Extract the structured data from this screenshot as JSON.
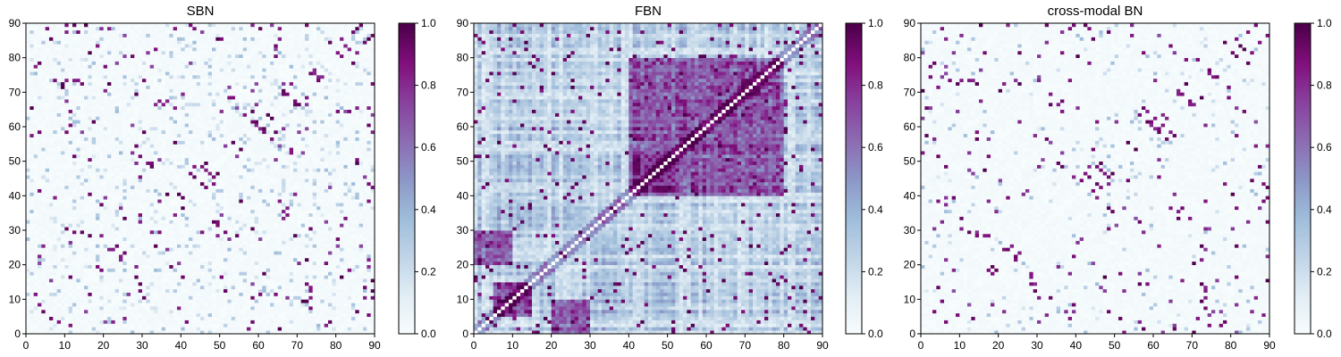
{
  "chart_data": [
    {
      "type": "heatmap",
      "title": "SBN",
      "xlim": [
        0,
        90
      ],
      "ylim": [
        0,
        90
      ],
      "xticks": [
        "0",
        "10",
        "20",
        "30",
        "40",
        "50",
        "60",
        "70",
        "80",
        "90"
      ],
      "yticks": [
        "0",
        "10",
        "20",
        "30",
        "40",
        "50",
        "60",
        "70",
        "80",
        "90"
      ],
      "colorbar": {
        "ticks": [
          "0.0",
          "0.2",
          "0.4",
          "0.6",
          "0.8",
          "1.0"
        ],
        "range": [
          0,
          1
        ]
      },
      "matrix_size": 90,
      "baseline": 0.03,
      "sparse_strong_links": 0.025,
      "sparse_weak_links": 0.08,
      "strong_pairs": [
        [
          1,
          57
        ],
        [
          1,
          65
        ],
        [
          2,
          77
        ],
        [
          3,
          78
        ],
        [
          5,
          88
        ],
        [
          6,
          85
        ],
        [
          7,
          73
        ],
        [
          9,
          72
        ],
        [
          10,
          73
        ],
        [
          12,
          73
        ],
        [
          13,
          73
        ],
        [
          14,
          72
        ],
        [
          15,
          90
        ],
        [
          16,
          81
        ],
        [
          18,
          19
        ],
        [
          20,
          70
        ],
        [
          21,
          88
        ],
        [
          22,
          24
        ],
        [
          23,
          25
        ],
        [
          24,
          21
        ],
        [
          25,
          23
        ],
        [
          28,
          16
        ],
        [
          29,
          12
        ],
        [
          30,
          10
        ],
        [
          33,
          66
        ],
        [
          34,
          67
        ],
        [
          35,
          66
        ],
        [
          36,
          67
        ],
        [
          38,
          88
        ],
        [
          42,
          46
        ],
        [
          43,
          48
        ],
        [
          44,
          44
        ],
        [
          45,
          43
        ],
        [
          46,
          49
        ],
        [
          47,
          46
        ],
        [
          48,
          45
        ],
        [
          50,
          50
        ],
        [
          52,
          52
        ],
        [
          53,
          55
        ],
        [
          55,
          55
        ],
        [
          58,
          64
        ],
        [
          59,
          61
        ],
        [
          60,
          59
        ],
        [
          61,
          58
        ],
        [
          62,
          63
        ],
        [
          63,
          56
        ],
        [
          64,
          83
        ],
        [
          65,
          85
        ],
        [
          66,
          70
        ],
        [
          67,
          69
        ],
        [
          68,
          72
        ],
        [
          69,
          66
        ],
        [
          70,
          66
        ],
        [
          72,
          21
        ],
        [
          73,
          30
        ],
        [
          74,
          76
        ],
        [
          75,
          74
        ],
        [
          76,
          74
        ],
        [
          78,
          84
        ],
        [
          80,
          81
        ],
        [
          81,
          85
        ],
        [
          82,
          83
        ],
        [
          84,
          87
        ],
        [
          85,
          88
        ],
        [
          86,
          90
        ],
        [
          88,
          43
        ],
        [
          89,
          42
        ],
        [
          87,
          13
        ],
        [
          60,
          11
        ],
        [
          39,
          7
        ],
        [
          4,
          6
        ],
        [
          8,
          3
        ],
        [
          11,
          2
        ]
      ],
      "cmap": [
        "#f7fcfd",
        "#e0ecf4",
        "#bfd3e6",
        "#9ebcda",
        "#8c96c6",
        "#8c6bb1",
        "#88419d",
        "#810f7c",
        "#4d004b"
      ]
    },
    {
      "type": "heatmap",
      "title": "FBN",
      "xlim": [
        0,
        90
      ],
      "ylim": [
        0,
        90
      ],
      "xticks": [
        "0",
        "10",
        "20",
        "30",
        "40",
        "50",
        "60",
        "70",
        "80",
        "90"
      ],
      "yticks": [
        "0",
        "10",
        "20",
        "30",
        "40",
        "50",
        "60",
        "70",
        "80",
        "90"
      ],
      "colorbar": {
        "ticks": [
          "0.0",
          "0.2",
          "0.4",
          "0.6",
          "0.8",
          "1.0"
        ],
        "range": [
          0,
          1
        ]
      },
      "matrix_size": 90,
      "dense": true,
      "diagonal": "white",
      "dense_blocks": [
        [
          [
            40,
            80
          ],
          [
            40,
            80
          ]
        ],
        [
          [
            5,
            15
          ],
          [
            5,
            15
          ]
        ],
        [
          [
            0,
            10
          ],
          [
            20,
            30
          ]
        ]
      ],
      "cmap": [
        "#f7fcfd",
        "#e0ecf4",
        "#bfd3e6",
        "#9ebcda",
        "#8c96c6",
        "#8c6bb1",
        "#88419d",
        "#810f7c",
        "#4d004b"
      ]
    },
    {
      "type": "heatmap",
      "title": "cross-modal BN",
      "xlim": [
        0,
        90
      ],
      "ylim": [
        0,
        90
      ],
      "xticks": [
        "0",
        "10",
        "20",
        "30",
        "40",
        "50",
        "60",
        "70",
        "80",
        "90"
      ],
      "yticks": [
        "0",
        "10",
        "20",
        "30",
        "40",
        "50",
        "60",
        "70",
        "80",
        "90"
      ],
      "colorbar": {
        "ticks": [
          "0.0",
          "0.2",
          "0.4",
          "0.6",
          "0.8",
          "1.0"
        ],
        "range": [
          0,
          1
        ]
      },
      "matrix_size": 90,
      "baseline": 0.03,
      "sparse_strong_links": 0.022,
      "sparse_weak_links": 0.03,
      "strong_pairs": [
        [
          1,
          57
        ],
        [
          1,
          65
        ],
        [
          2,
          77
        ],
        [
          3,
          78
        ],
        [
          5,
          88
        ],
        [
          6,
          85
        ],
        [
          7,
          73
        ],
        [
          9,
          72
        ],
        [
          10,
          73
        ],
        [
          12,
          73
        ],
        [
          13,
          73
        ],
        [
          14,
          72
        ],
        [
          15,
          90
        ],
        [
          16,
          81
        ],
        [
          18,
          19
        ],
        [
          20,
          70
        ],
        [
          22,
          24
        ],
        [
          23,
          25
        ],
        [
          24,
          21
        ],
        [
          25,
          23
        ],
        [
          28,
          16
        ],
        [
          29,
          12
        ],
        [
          30,
          10
        ],
        [
          33,
          66
        ],
        [
          35,
          66
        ],
        [
          36,
          67
        ],
        [
          38,
          88
        ],
        [
          42,
          46
        ],
        [
          43,
          48
        ],
        [
          44,
          44
        ],
        [
          45,
          43
        ],
        [
          46,
          49
        ],
        [
          47,
          46
        ],
        [
          48,
          45
        ],
        [
          50,
          50
        ],
        [
          52,
          52
        ],
        [
          53,
          55
        ],
        [
          55,
          55
        ],
        [
          58,
          64
        ],
        [
          59,
          61
        ],
        [
          60,
          59
        ],
        [
          61,
          58
        ],
        [
          62,
          63
        ],
        [
          63,
          56
        ],
        [
          64,
          83
        ],
        [
          66,
          70
        ],
        [
          67,
          69
        ],
        [
          68,
          72
        ],
        [
          69,
          66
        ],
        [
          72,
          21
        ],
        [
          73,
          30
        ],
        [
          74,
          76
        ],
        [
          75,
          74
        ],
        [
          78,
          84
        ],
        [
          80,
          81
        ],
        [
          81,
          85
        ],
        [
          82,
          83
        ],
        [
          84,
          87
        ],
        [
          86,
          90
        ],
        [
          88,
          43
        ],
        [
          89,
          42
        ],
        [
          6,
          3
        ],
        [
          9,
          5
        ],
        [
          56,
          3
        ],
        [
          74,
          2
        ]
      ],
      "cmap": [
        "#f7fcfd",
        "#e0ecf4",
        "#bfd3e6",
        "#9ebcda",
        "#8c96c6",
        "#8c6bb1",
        "#88419d",
        "#810f7c",
        "#4d004b"
      ]
    }
  ]
}
